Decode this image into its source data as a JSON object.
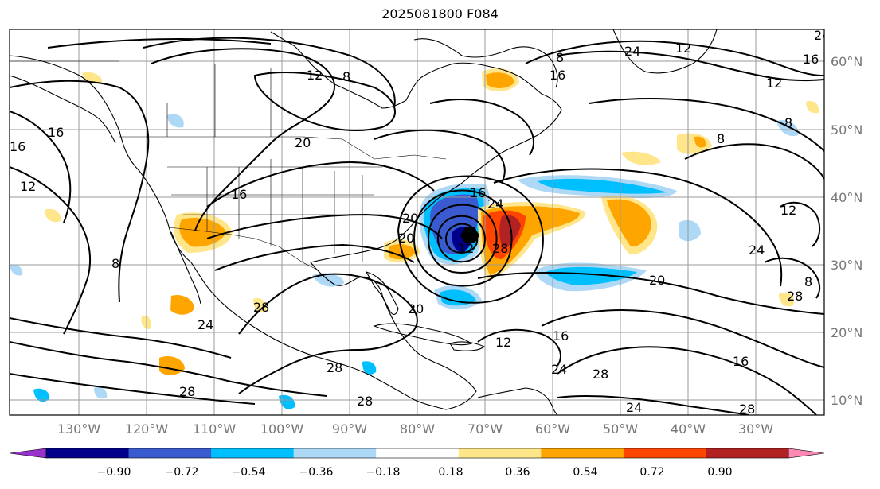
{
  "title": "2025081800 F084",
  "lat_labels": [
    "60°N",
    "50°N",
    "40°N",
    "30°N",
    "20°N",
    "10°N"
  ],
  "lon_labels": [
    "130°W",
    "120°W",
    "110°W",
    "100°W",
    "90°W",
    "80°W",
    "70°W",
    "60°W",
    "50°W",
    "40°W",
    "30°W"
  ],
  "contour_labels": [
    "8",
    "12",
    "16",
    "20",
    "24",
    "28",
    "8",
    "12",
    "16",
    "20",
    "24",
    "28",
    "16",
    "12",
    "28",
    "24",
    "20",
    "16",
    "12",
    "8",
    "28",
    "24",
    "16",
    "20",
    "12",
    "24",
    "8",
    "16",
    "12",
    "28",
    "24",
    "28",
    "16",
    "28",
    "20",
    "12",
    "8",
    "8",
    "24",
    "28",
    "16"
  ],
  "colorbar": {
    "ticks": [
      "−0.90",
      "−0.72",
      "−0.54",
      "−0.36",
      "−0.18",
      "0.18",
      "0.36",
      "0.54",
      "0.72",
      "0.90"
    ],
    "colors": [
      "#9932cc",
      "#00008b",
      "#3a5bcf",
      "#00bfff",
      "#add8f6",
      "#ffffff",
      "#ffe68a",
      "#ffa500",
      "#ff4500",
      "#b22222",
      "#ff88b4"
    ]
  }
}
